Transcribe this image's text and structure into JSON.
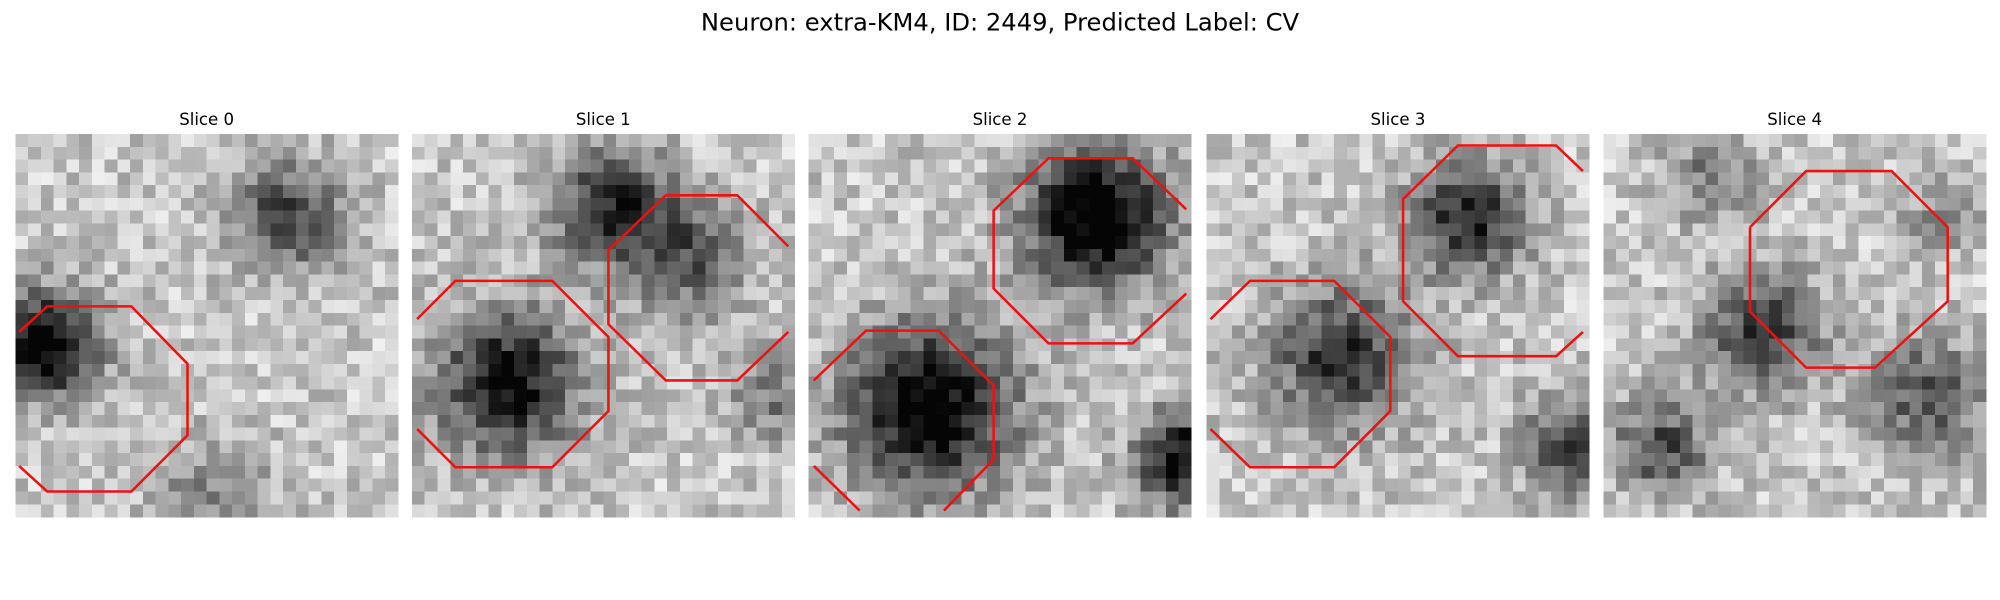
{
  "title": "Neuron: extra-KM4, ID: 2449, Predicted Label: CV",
  "panels": [
    {
      "title": "Slice 0"
    },
    {
      "title": "Slice 1"
    },
    {
      "title": "Slice 2"
    },
    {
      "title": "Slice 3"
    },
    {
      "title": "Slice 4"
    }
  ]
}
